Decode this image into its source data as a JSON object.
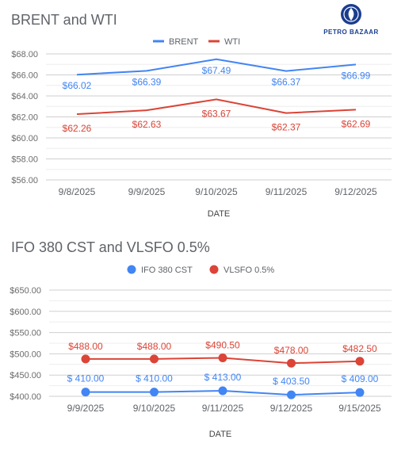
{
  "logo": {
    "text": "PETRO BAZAAR",
    "color": "#1a3d8f"
  },
  "chart_data": [
    {
      "type": "line",
      "title": "BRENT and WTI",
      "xlabel": "DATE",
      "ylabel": "",
      "categories": [
        "9/8/2025",
        "9/9/2025",
        "9/10/2025",
        "9/11/2025",
        "9/12/2025"
      ],
      "series": [
        {
          "name": "BRENT",
          "color": "#4285f4",
          "values": [
            66.02,
            66.39,
            67.49,
            66.37,
            66.99
          ],
          "labels": [
            "$66.02",
            "$66.39",
            "$67.49",
            "$66.37",
            "$66.99"
          ]
        },
        {
          "name": "WTI",
          "color": "#db4437",
          "values": [
            62.26,
            62.63,
            63.67,
            62.37,
            62.69
          ],
          "labels": [
            "$62.26",
            "$62.63",
            "$63.67",
            "$62.37",
            "$62.69"
          ]
        }
      ],
      "ylim": [
        56,
        68
      ],
      "yticks": [
        56,
        58,
        60,
        62,
        64,
        66,
        68
      ],
      "yticklabels": [
        "$56.00",
        "$58.00",
        "$60.00",
        "$62.00",
        "$64.00",
        "$66.00",
        "$68.00"
      ],
      "markers": false,
      "grid": true,
      "legend": "top-center"
    },
    {
      "type": "line",
      "title": "IFO 380 CST and VLSFO 0.5%",
      "xlabel": "DATE",
      "ylabel": "",
      "categories": [
        "9/9/2025",
        "9/10/2025",
        "9/11/2025",
        "9/12/2025",
        "9/15/2025"
      ],
      "series": [
        {
          "name": "IFO 380 CST",
          "color": "#4285f4",
          "values": [
            410.0,
            410.0,
            413.0,
            403.5,
            409.0
          ],
          "labels": [
            "$ 410.00",
            "$ 410.00",
            "$ 413.00",
            "$ 403.50",
            "$ 409.00"
          ]
        },
        {
          "name": "VLSFO 0.5%",
          "color": "#db4437",
          "values": [
            488.0,
            488.0,
            490.5,
            478.0,
            482.5
          ],
          "labels": [
            "$488.00",
            "$488.00",
            "$490.50",
            "$478.00",
            "$482.50"
          ]
        }
      ],
      "ylim": [
        400,
        650
      ],
      "yticks": [
        400,
        450,
        500,
        550,
        600,
        650
      ],
      "yticklabels": [
        "$400.00",
        "$450.00",
        "$500.00",
        "$550.00",
        "$600.00",
        "$650.00"
      ],
      "markers": true,
      "grid": true,
      "legend": "top-center"
    }
  ]
}
